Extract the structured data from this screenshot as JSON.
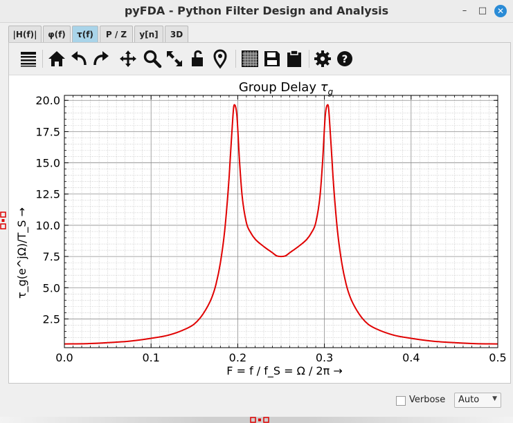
{
  "window": {
    "title": "pyFDA - Python Filter Design and Analysis",
    "controls": {
      "minimize": "–",
      "maximize": "□",
      "close": "✕"
    }
  },
  "tabs": [
    {
      "label": "|H(f)|"
    },
    {
      "label": "φ(f)"
    },
    {
      "label": "τ(f)",
      "active": true
    },
    {
      "label": "P / Z"
    },
    {
      "label": "y[n]"
    },
    {
      "label": "3D"
    }
  ],
  "toolbar": {
    "icons": [
      "menu-stack-icon",
      "home-icon",
      "undo-icon",
      "redo-icon",
      "pan-icon",
      "zoom-icon",
      "fullscreen-icon",
      "unlock-icon",
      "marker-icon",
      "grid-icon",
      "save-icon",
      "clipboard-icon",
      "gear-icon",
      "help-icon"
    ]
  },
  "chart_data": {
    "type": "line",
    "title": "Group Delay τ_g",
    "title_parts": {
      "main": "Group Delay ",
      "sym": "τ",
      "sub": "g"
    },
    "xlabel": "F = f / f_S = Ω / 2π →",
    "ylabel": "τ_g(e^jΩ)/T_S →",
    "xlim": [
      0.0,
      0.5
    ],
    "ylim": [
      0.2,
      20.4
    ],
    "xticks": [
      "0.0",
      "0.1",
      "0.2",
      "0.3",
      "0.4",
      "0.5"
    ],
    "yticks": [
      "2.5",
      "5.0",
      "7.5",
      "10.0",
      "12.5",
      "15.0",
      "17.5",
      "20.0"
    ],
    "grid": true,
    "line_color": "#e00000",
    "series": [
      {
        "x": [
          0.0,
          0.025,
          0.05,
          0.075,
          0.1,
          0.12,
          0.14,
          0.15,
          0.16,
          0.17,
          0.175,
          0.18,
          0.185,
          0.19,
          0.193,
          0.196,
          0.199,
          0.202,
          0.205,
          0.21,
          0.215,
          0.22,
          0.23,
          0.24,
          0.245,
          0.25,
          0.255,
          0.26,
          0.27,
          0.28,
          0.285,
          0.29,
          0.295,
          0.298,
          0.301,
          0.304,
          0.307,
          0.31,
          0.315,
          0.32,
          0.325,
          0.33,
          0.34,
          0.35,
          0.36,
          0.38,
          0.4,
          0.425,
          0.45,
          0.475,
          0.5
        ],
        "y": [
          0.5,
          0.52,
          0.6,
          0.72,
          0.95,
          1.2,
          1.7,
          2.1,
          2.9,
          4.2,
          5.3,
          7.0,
          9.6,
          13.8,
          17.2,
          19.65,
          18.8,
          15.2,
          12.4,
          10.2,
          9.4,
          8.9,
          8.3,
          7.8,
          7.55,
          7.5,
          7.55,
          7.8,
          8.3,
          8.9,
          9.4,
          10.2,
          12.4,
          15.2,
          18.8,
          19.65,
          17.2,
          13.8,
          9.6,
          7.0,
          5.3,
          4.2,
          2.9,
          2.1,
          1.7,
          1.2,
          0.95,
          0.72,
          0.6,
          0.52,
          0.5
        ]
      }
    ]
  },
  "bottom": {
    "verbose_label": "Verbose",
    "verbose_checked": false,
    "scale_select": "Auto"
  }
}
